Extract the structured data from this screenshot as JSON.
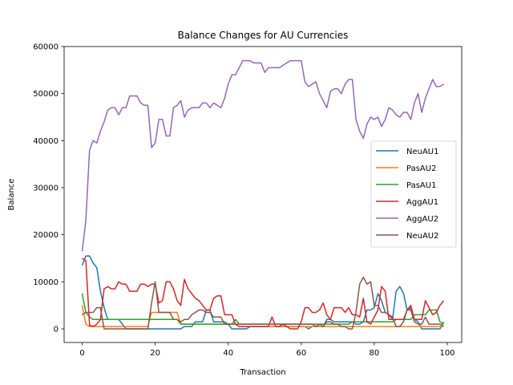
{
  "chart_data": {
    "type": "line",
    "title": "Balance Changes for AU Currencies",
    "xlabel": "Transaction",
    "ylabel": "Balance",
    "xlim": [
      -4.95,
      103.95
    ],
    "ylim": [
      -2900,
      60000
    ],
    "x_ticks": [
      0,
      20,
      40,
      60,
      80,
      100
    ],
    "y_ticks": [
      0,
      10000,
      20000,
      30000,
      40000,
      50000,
      60000
    ],
    "legend": "center-right",
    "grid": false,
    "x": [
      0,
      1,
      2,
      3,
      4,
      5,
      6,
      7,
      8,
      9,
      10,
      11,
      12,
      13,
      14,
      15,
      16,
      17,
      18,
      19,
      20,
      21,
      22,
      23,
      24,
      25,
      26,
      27,
      28,
      29,
      30,
      31,
      32,
      33,
      34,
      35,
      36,
      37,
      38,
      39,
      40,
      41,
      42,
      43,
      44,
      45,
      46,
      47,
      48,
      49,
      50,
      51,
      52,
      53,
      54,
      55,
      56,
      57,
      58,
      59,
      60,
      61,
      62,
      63,
      64,
      65,
      66,
      67,
      68,
      69,
      70,
      71,
      72,
      73,
      74,
      75,
      76,
      77,
      78,
      79,
      80,
      81,
      82,
      83,
      84,
      85,
      86,
      87,
      88,
      89,
      90,
      91,
      92,
      93,
      94,
      95,
      96,
      97,
      98,
      99
    ],
    "series": [
      {
        "name": "NeuAU1",
        "color": "#1f77b4",
        "values": [
          13500,
          15500,
          15500,
          14000,
          13000,
          8000,
          4500,
          2000,
          2000,
          2000,
          2000,
          1000,
          0,
          0,
          0,
          0,
          0,
          0,
          0,
          0,
          0,
          0,
          0,
          0,
          0,
          0,
          0,
          0,
          500,
          500,
          500,
          1500,
          1500,
          1500,
          4000,
          4000,
          1500,
          1500,
          1500,
          1500,
          1000,
          0,
          0,
          0,
          0,
          0,
          500,
          500,
          500,
          500,
          500,
          500,
          500,
          500,
          500,
          500,
          500,
          500,
          500,
          500,
          500,
          500,
          0,
          500,
          500,
          500,
          500,
          2000,
          2000,
          1500,
          1500,
          1500,
          1500,
          1500,
          1500,
          1000,
          1000,
          1500,
          4000,
          4000,
          4500,
          7500,
          6000,
          3500,
          3000,
          2000,
          8000,
          9000,
          7500,
          4000,
          4500,
          2000,
          1500,
          0,
          0,
          0,
          0,
          0,
          0,
          1500
        ]
      },
      {
        "name": "PasAU2",
        "color": "#ff7f0e",
        "values": [
          5000,
          1000,
          500,
          500,
          500,
          500,
          500,
          500,
          500,
          500,
          500,
          500,
          500,
          500,
          500,
          500,
          500,
          500,
          500,
          3500,
          3500,
          3500,
          3500,
          3500,
          3500,
          3500,
          3500,
          1000,
          1000,
          1000,
          1000,
          1000,
          1000,
          1000,
          1000,
          1000,
          1000,
          1000,
          1000,
          1000,
          1000,
          1000,
          1000,
          500,
          500,
          500,
          500,
          500,
          500,
          500,
          500,
          500,
          500,
          500,
          500,
          500,
          500,
          500,
          500,
          500,
          500,
          500,
          500,
          500,
          500,
          500,
          500,
          500,
          500,
          500,
          500,
          500,
          500,
          500,
          500,
          500,
          500,
          500,
          500,
          500,
          500,
          500,
          500,
          500,
          500,
          500,
          500,
          500,
          500,
          500,
          500,
          500,
          500,
          500,
          500,
          500,
          500,
          500,
          500,
          500
        ]
      },
      {
        "name": "PasAU1",
        "color": "#2ca02c",
        "values": [
          7500,
          3500,
          2500,
          2000,
          2000,
          2000,
          2000,
          2000,
          2000,
          2000,
          2000,
          2000,
          2000,
          2000,
          2000,
          2000,
          2000,
          2000,
          2000,
          2000,
          2000,
          2000,
          2000,
          2000,
          2000,
          2000,
          2000,
          1000,
          1000,
          1000,
          1000,
          1000,
          1000,
          1000,
          1000,
          1000,
          1000,
          1000,
          1000,
          1000,
          1000,
          1000,
          2000,
          1000,
          1000,
          1000,
          1000,
          1000,
          1000,
          1000,
          1000,
          1000,
          1000,
          1000,
          1000,
          1000,
          1000,
          1000,
          1000,
          1000,
          1000,
          1000,
          1000,
          1000,
          1000,
          1000,
          1000,
          1000,
          1000,
          1000,
          1000,
          1000,
          1000,
          1000,
          1500,
          1500,
          1500,
          1500,
          1500,
          1500,
          1500,
          1500,
          1500,
          1500,
          1500,
          1500,
          2000,
          2000,
          2000,
          2000,
          2000,
          3000,
          3000,
          3000,
          3000,
          4000,
          4000,
          4000,
          1500,
          1000
        ]
      },
      {
        "name": "AggAU1",
        "color": "#d62728",
        "values": [
          15000,
          14500,
          800,
          500,
          1000,
          2000,
          8500,
          9000,
          8500,
          8500,
          10000,
          9500,
          9500,
          8000,
          8000,
          8000,
          9500,
          9500,
          9000,
          9500,
          9500,
          5500,
          6000,
          10000,
          10000,
          8500,
          6000,
          5000,
          10500,
          8500,
          7500,
          6500,
          6000,
          5000,
          4000,
          4000,
          6500,
          7000,
          7000,
          3000,
          3000,
          3000,
          1000,
          500,
          500,
          500,
          500,
          500,
          500,
          500,
          500,
          500,
          2500,
          500,
          500,
          1000,
          500,
          0,
          0,
          0,
          1500,
          4500,
          4500,
          3500,
          3500,
          4000,
          5500,
          3000,
          2000,
          4500,
          4500,
          4500,
          3500,
          4500,
          3000,
          3000,
          2500,
          6500,
          1500,
          1000,
          2500,
          4000,
          9000,
          8000,
          2000,
          2000,
          2000,
          2000,
          2000,
          4000,
          5000,
          2000,
          2000,
          2000,
          6000,
          4500,
          3000,
          3500,
          5000,
          6000
        ]
      },
      {
        "name": "AggAU2",
        "color": "#9467bd",
        "values": [
          16500,
          23000,
          38000,
          40000,
          39500,
          42000,
          44000,
          46500,
          47000,
          47000,
          45500,
          47000,
          47000,
          49500,
          49500,
          49500,
          48000,
          47500,
          47500,
          38500,
          39500,
          44500,
          44500,
          41000,
          41000,
          47000,
          47500,
          48500,
          45000,
          46500,
          47000,
          47000,
          47000,
          48000,
          48000,
          47000,
          48000,
          47500,
          47000,
          49000,
          52000,
          54000,
          54000,
          55500,
          57000,
          57000,
          57000,
          56500,
          56500,
          56500,
          54500,
          55500,
          55500,
          55500,
          55500,
          56000,
          56500,
          57000,
          57000,
          57000,
          57000,
          52500,
          51500,
          52000,
          52500,
          50000,
          48500,
          47000,
          50500,
          51000,
          51000,
          50000,
          52000,
          53000,
          53000,
          44500,
          42000,
          40500,
          43500,
          45000,
          44500,
          45000,
          43000,
          44500,
          47000,
          46500,
          45500,
          45000,
          46000,
          46000,
          44500,
          48000,
          50000,
          46000,
          49000,
          51000,
          53000,
          51500,
          51500,
          52000
        ]
      },
      {
        "name": "NeuAU2",
        "color": "#8c564b",
        "values": [
          3000,
          3500,
          3500,
          3500,
          4500,
          4500,
          0,
          0,
          0,
          0,
          0,
          0,
          0,
          0,
          0,
          0,
          0,
          0,
          0,
          5500,
          10000,
          3500,
          3500,
          3500,
          3500,
          2000,
          2000,
          1500,
          2000,
          2000,
          3000,
          3500,
          4000,
          4000,
          3500,
          3500,
          2500,
          2500,
          2500,
          1000,
          1000,
          1000,
          1000,
          1000,
          1000,
          1000,
          1000,
          1000,
          1000,
          1000,
          1000,
          1000,
          1000,
          1000,
          1000,
          1000,
          1000,
          1000,
          1000,
          1000,
          1000,
          1000,
          1000,
          1000,
          500,
          1000,
          500,
          1500,
          1500,
          1000,
          1000,
          500,
          500,
          0,
          0,
          3500,
          9500,
          11000,
          9500,
          10000,
          5000,
          5000,
          3500,
          3500,
          3000,
          2500,
          500,
          500,
          1500,
          4000,
          4000,
          1500,
          1000,
          1000,
          2500,
          1000,
          1000,
          1000,
          1000,
          500
        ]
      }
    ]
  }
}
